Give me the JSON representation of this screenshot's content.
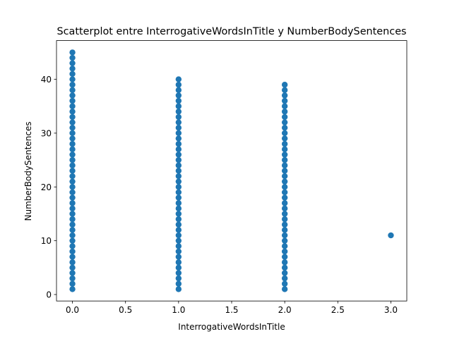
{
  "chart_data": {
    "type": "scatter",
    "title": "Scatterplot entre InterrogativeWordsInTitle y NumberBodySentences",
    "xlabel": "InterrogativeWordsInTitle",
    "ylabel": "NumberBodySentences",
    "color": "#1f77b4",
    "x": [
      0,
      0,
      0,
      0,
      0,
      0,
      0,
      0,
      0,
      0,
      0,
      0,
      0,
      0,
      0,
      0,
      0,
      0,
      0,
      0,
      0,
      0,
      0,
      0,
      0,
      0,
      0,
      0,
      0,
      0,
      0,
      0,
      0,
      0,
      0,
      0,
      0,
      0,
      0,
      0,
      0,
      0,
      0,
      0,
      0,
      1,
      1,
      1,
      1,
      1,
      1,
      1,
      1,
      1,
      1,
      1,
      1,
      1,
      1,
      1,
      1,
      1,
      1,
      1,
      1,
      1,
      1,
      1,
      1,
      1,
      1,
      1,
      1,
      1,
      1,
      1,
      1,
      1,
      1,
      1,
      1,
      1,
      1,
      1,
      1,
      2,
      2,
      2,
      2,
      2,
      2,
      2,
      2,
      2,
      2,
      2,
      2,
      2,
      2,
      2,
      2,
      2,
      2,
      2,
      2,
      2,
      2,
      2,
      2,
      2,
      2,
      2,
      2,
      2,
      2,
      2,
      2,
      2,
      2,
      2,
      2,
      2,
      2,
      2,
      3
    ],
    "y": [
      1,
      2,
      3,
      4,
      5,
      6,
      7,
      8,
      9,
      10,
      11,
      12,
      13,
      14,
      15,
      16,
      17,
      18,
      19,
      20,
      21,
      22,
      23,
      24,
      25,
      26,
      27,
      28,
      29,
      30,
      31,
      32,
      33,
      34,
      35,
      36,
      37,
      38,
      39,
      40,
      41,
      42,
      43,
      44,
      45,
      1,
      2,
      3,
      4,
      5,
      6,
      7,
      8,
      9,
      10,
      11,
      12,
      13,
      14,
      15,
      16,
      17,
      18,
      19,
      20,
      21,
      22,
      23,
      24,
      25,
      26,
      27,
      28,
      29,
      30,
      31,
      32,
      33,
      34,
      35,
      36,
      37,
      38,
      39,
      40,
      1,
      2,
      3,
      4,
      5,
      6,
      7,
      8,
      9,
      10,
      11,
      12,
      13,
      14,
      15,
      16,
      17,
      18,
      19,
      20,
      21,
      22,
      23,
      24,
      25,
      26,
      27,
      28,
      29,
      30,
      31,
      32,
      33,
      34,
      35,
      36,
      37,
      38,
      39,
      11
    ],
    "xlim": [
      -0.15,
      3.15
    ],
    "ylim": [
      -1.2,
      47.2
    ],
    "xticks": [
      {
        "value": 0,
        "label": "0.0"
      },
      {
        "value": 0.5,
        "label": "0.5"
      },
      {
        "value": 1,
        "label": "1.0"
      },
      {
        "value": 1.5,
        "label": "1.5"
      },
      {
        "value": 2,
        "label": "2.0"
      },
      {
        "value": 2.5,
        "label": "2.5"
      },
      {
        "value": 3,
        "label": "3.0"
      }
    ],
    "yticks": [
      0,
      10,
      20,
      30,
      40
    ],
    "grid": false
  }
}
